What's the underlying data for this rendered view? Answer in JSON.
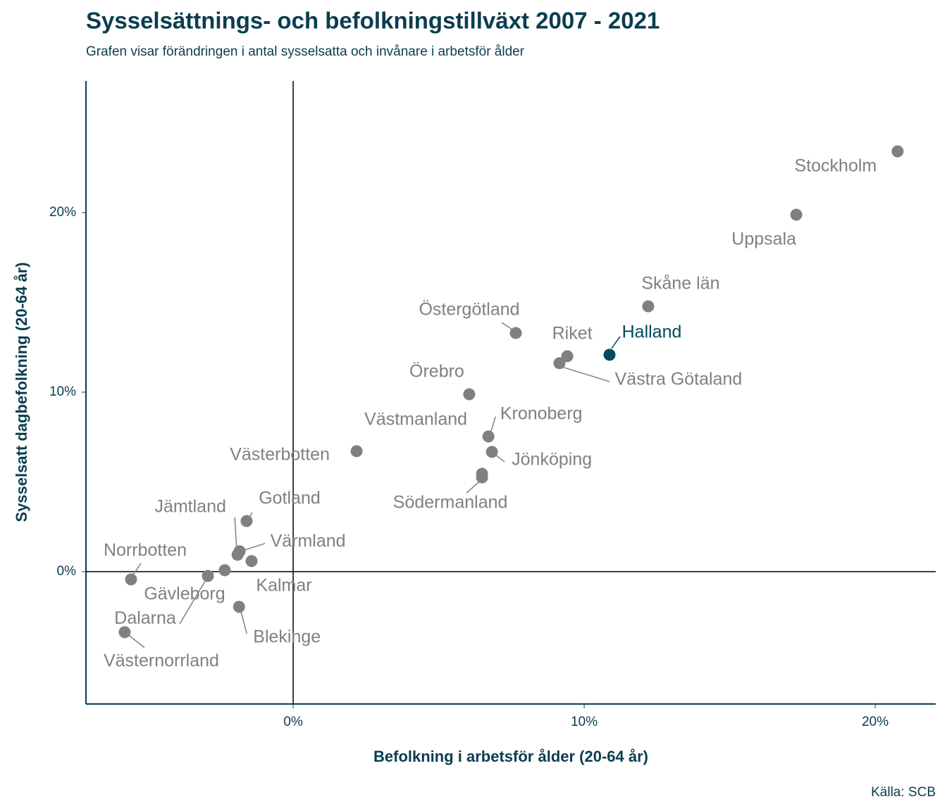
{
  "chart_data": {
    "type": "scatter",
    "title": "Sysselsättnings- och befolkningstillväxt 2007 - 2021",
    "subtitle": "Grafen visar förändringen i antal sysselsatta och invånare i arbetsför ålder",
    "x_label": "Befolkning i arbetsför ålder (20-64 år)",
    "y_label": "Sysselsatt dagbefolkning (20-64 år)",
    "source": "Källa: SCB",
    "labels": [
      "Stockholm",
      "Uppsala",
      "Skåne län",
      "Östergötland",
      "Riket",
      "Halland",
      "Västra Götaland",
      "Örebro",
      "Kronoberg",
      "Jönköping",
      "Västerbotten",
      "Västmanland",
      "Södermanland",
      "Gotland",
      "Jämtland",
      "Värmland",
      "Kalmar",
      "Gävleborg",
      "Dalarna",
      "Norrbotten",
      "Blekinge",
      "Västernorrland"
    ],
    "x": [
      20.77,
      17.29,
      12.2,
      7.65,
      9.42,
      10.87,
      9.15,
      6.05,
      6.71,
      6.83,
      2.18,
      6.49,
      6.49,
      -1.6,
      -1.91,
      -1.84,
      -1.43,
      -2.35,
      -2.93,
      -5.57,
      -1.86,
      -5.79
    ],
    "values": [
      23.41,
      19.88,
      14.78,
      13.29,
      12.0,
      12.08,
      11.61,
      9.88,
      7.53,
      6.67,
      6.71,
      5.45,
      5.25,
      2.82,
      0.94,
      1.14,
      0.59,
      0.08,
      -0.24,
      -0.43,
      -1.96,
      -3.37
    ],
    "point_colors": [
      "#808080",
      "#808080",
      "#808080",
      "#808080",
      "#808080",
      "#004b5c",
      "#808080",
      "#808080",
      "#808080",
      "#808080",
      "#808080",
      "#808080",
      "#808080",
      "#808080",
      "#808080",
      "#808080",
      "#808080",
      "#808080",
      "#808080",
      "#808080",
      "#808080",
      "#808080"
    ],
    "xlim": [
      -7.12,
      22.08
    ],
    "ylim": [
      -7.37,
      27.33
    ],
    "xticks": [
      {
        "value": 0,
        "label": "0%"
      },
      {
        "value": 10,
        "label": "10%"
      },
      {
        "value": 20,
        "label": "20%"
      }
    ],
    "yticks": [
      {
        "value": 0,
        "label": "0%"
      },
      {
        "value": 10,
        "label": "10%"
      },
      {
        "value": 20,
        "label": "20%"
      }
    ]
  }
}
